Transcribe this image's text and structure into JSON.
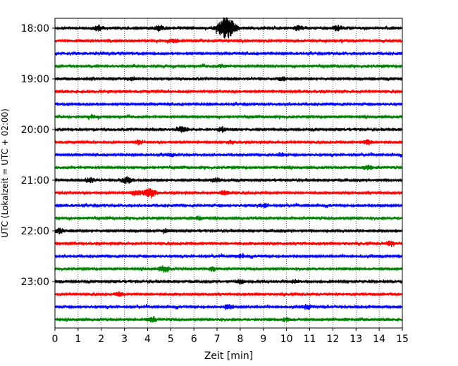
{
  "chart_data": {
    "type": "line",
    "title": "",
    "xlabel": "Zeit  [min]",
    "ylabel": "UTC (Lokalzeit = UTC + 02:00)",
    "xlim": [
      0,
      15
    ],
    "x_ticks": [
      0,
      1,
      2,
      3,
      4,
      5,
      6,
      7,
      8,
      9,
      10,
      11,
      12,
      13,
      14,
      15
    ],
    "x_tick_labels": [
      "0",
      "1",
      "2",
      "3",
      "4",
      "5",
      "6",
      "7",
      "8",
      "9",
      "10",
      "11",
      "12",
      "13",
      "14",
      "15"
    ],
    "y_tick_labels": [
      "18:00",
      "19:00",
      "20:00",
      "21:00",
      "22:00",
      "23:00"
    ],
    "trace_interval_minutes": 15,
    "grid_x": true,
    "grid_y": false,
    "trace_colors": [
      "#000000",
      "#ff0000",
      "#0000ff",
      "#008000"
    ],
    "traces": [
      {
        "start": "18:00",
        "events": [
          {
            "x": 7.4,
            "amp": 1.0
          },
          {
            "x": 1.9,
            "amp": 0.25
          },
          {
            "x": 4.5,
            "amp": 0.22
          },
          {
            "x": 10.5,
            "amp": 0.22
          },
          {
            "x": 12.2,
            "amp": 0.25
          }
        ]
      },
      {
        "start": "18:15",
        "events": [
          {
            "x": 5.1,
            "amp": 0.2
          }
        ]
      },
      {
        "start": "18:30",
        "events": []
      },
      {
        "start": "18:45",
        "events": [
          {
            "x": 7.2,
            "amp": 0.15
          }
        ]
      },
      {
        "start": "19:00",
        "events": [
          {
            "x": 3.3,
            "amp": 0.15
          },
          {
            "x": 9.8,
            "amp": 0.15
          }
        ]
      },
      {
        "start": "19:15",
        "events": []
      },
      {
        "start": "19:30",
        "events": []
      },
      {
        "start": "19:45",
        "events": [
          {
            "x": 1.6,
            "amp": 0.15
          }
        ]
      },
      {
        "start": "20:00",
        "events": [
          {
            "x": 5.5,
            "amp": 0.25
          },
          {
            "x": 7.2,
            "amp": 0.2
          }
        ]
      },
      {
        "start": "20:15",
        "events": [
          {
            "x": 3.6,
            "amp": 0.2
          },
          {
            "x": 7.6,
            "amp": 0.15
          },
          {
            "x": 13.5,
            "amp": 0.2
          }
        ]
      },
      {
        "start": "20:30",
        "events": [
          {
            "x": 5.0,
            "amp": 0.15
          },
          {
            "x": 9.8,
            "amp": 0.15
          }
        ]
      },
      {
        "start": "20:45",
        "events": [
          {
            "x": 13.5,
            "amp": 0.2
          }
        ]
      },
      {
        "start": "21:00",
        "events": [
          {
            "x": 3.1,
            "amp": 0.3
          },
          {
            "x": 1.5,
            "amp": 0.2
          },
          {
            "x": 7.0,
            "amp": 0.18
          }
        ]
      },
      {
        "start": "21:15",
        "events": [
          {
            "x": 4.1,
            "amp": 0.45
          },
          {
            "x": 3.5,
            "amp": 0.25
          },
          {
            "x": 7.3,
            "amp": 0.2
          }
        ]
      },
      {
        "start": "21:30",
        "events": [
          {
            "x": 9.0,
            "amp": 0.15
          }
        ]
      },
      {
        "start": "21:45",
        "events": [
          {
            "x": 6.2,
            "amp": 0.15
          }
        ]
      },
      {
        "start": "22:00",
        "events": [
          {
            "x": 0.2,
            "amp": 0.2
          },
          {
            "x": 4.8,
            "amp": 0.15
          }
        ]
      },
      {
        "start": "22:15",
        "events": [
          {
            "x": 14.5,
            "amp": 0.2
          }
        ]
      },
      {
        "start": "22:30",
        "events": [
          {
            "x": 8.0,
            "amp": 0.15
          }
        ]
      },
      {
        "start": "22:45",
        "events": [
          {
            "x": 4.7,
            "amp": 0.3
          },
          {
            "x": 6.8,
            "amp": 0.2
          }
        ]
      },
      {
        "start": "23:00",
        "events": [
          {
            "x": 8.0,
            "amp": 0.18
          },
          {
            "x": 10.4,
            "amp": 0.15
          }
        ]
      },
      {
        "start": "23:15",
        "events": [
          {
            "x": 2.8,
            "amp": 0.2
          }
        ]
      },
      {
        "start": "23:30",
        "events": [
          {
            "x": 7.5,
            "amp": 0.22
          },
          {
            "x": 10.9,
            "amp": 0.18
          }
        ]
      },
      {
        "start": "23:45",
        "events": [
          {
            "x": 4.2,
            "amp": 0.2
          },
          {
            "x": 10.0,
            "amp": 0.15
          }
        ]
      }
    ]
  }
}
